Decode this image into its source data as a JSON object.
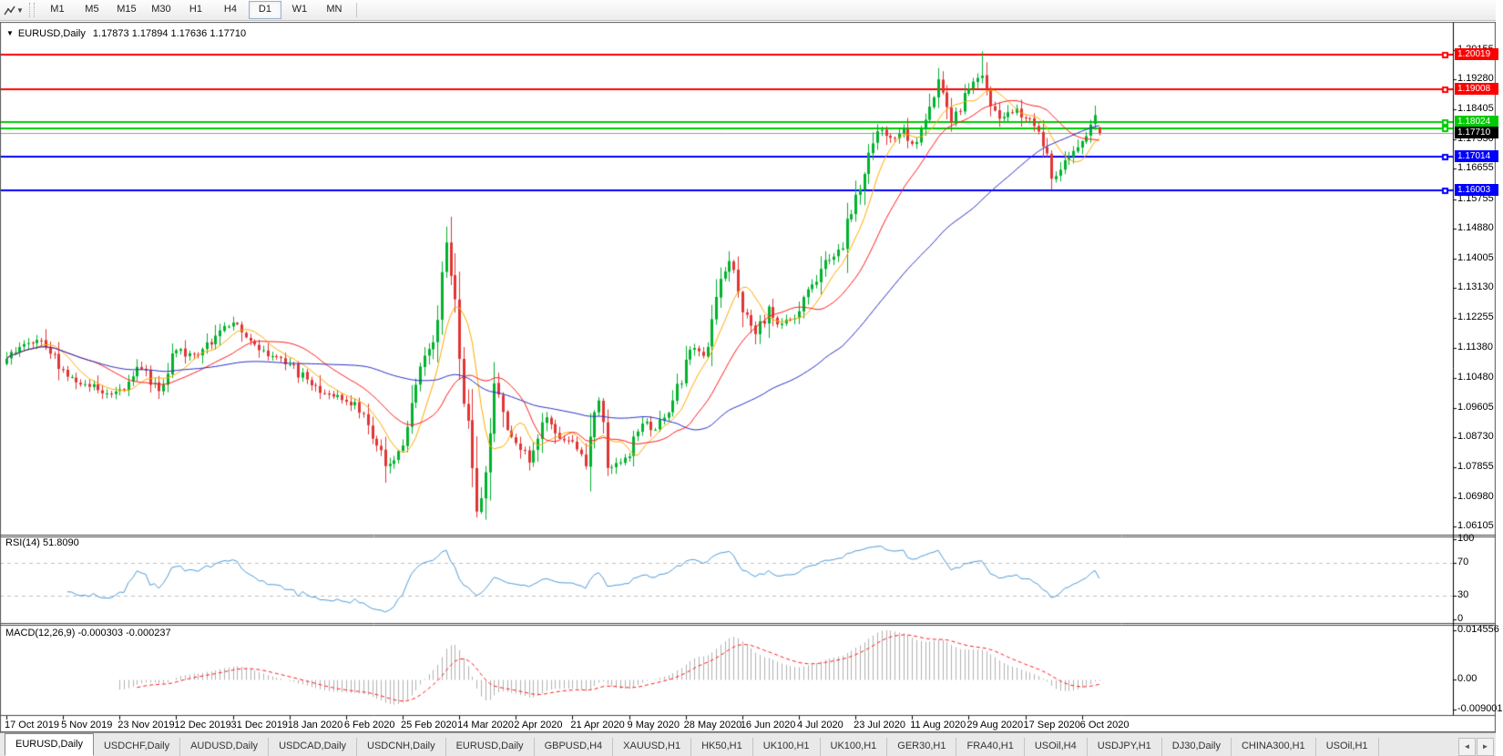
{
  "toolbar": {
    "timeframes": [
      "M1",
      "M5",
      "M15",
      "M30",
      "H1",
      "H4",
      "D1",
      "W1",
      "MN"
    ],
    "active_timeframe": "D1"
  },
  "chart": {
    "collapse_icon": "▼",
    "symbol_label": "EURUSD,Daily",
    "ohlc": "1.17873 1.17894 1.17636 1.17710"
  },
  "chart_data": {
    "type": "candlestick",
    "symbol": "EURUSD",
    "timeframe": "Daily",
    "title": "EURUSD,Daily",
    "last_ohlc": {
      "open": 1.17873,
      "high": 1.17894,
      "low": 1.17636,
      "close": 1.1771
    },
    "num_candles": 252,
    "candles_per_xlabel": 13,
    "x_labels": [
      "17 Oct 2019",
      "5 Nov 2019",
      "23 Nov 2019",
      "12 Dec 2019",
      "31 Dec 2019",
      "18 Jan 2020",
      "6 Feb 2020",
      "25 Feb 2020",
      "14 Mar 2020",
      "2 Apr 2020",
      "21 Apr 2020",
      "9 May 2020",
      "28 May 2020",
      "16 Jun 2020",
      "4 Jul 2020",
      "23 Jul 2020",
      "11 Aug 2020",
      "29 Aug 2020",
      "17 Sep 2020",
      "6 Oct 2020"
    ],
    "y_range": {
      "top": 1.2093,
      "bottom": 1.0592
    },
    "price_axis_labels": [
      "1.20155",
      "1.19280",
      "1.18405",
      "1.17530",
      "1.16655",
      "1.15755",
      "1.14880",
      "1.14005",
      "1.13130",
      "1.12255",
      "1.11380",
      "1.10480",
      "1.09605",
      "1.08730",
      "1.07855",
      "1.06980",
      "1.06105"
    ],
    "close_keyframes": [
      [
        0,
        1.1105
      ],
      [
        4,
        1.115
      ],
      [
        8,
        1.116
      ],
      [
        13,
        1.107
      ],
      [
        18,
        1.103
      ],
      [
        22,
        1.1005
      ],
      [
        26,
        1.1015
      ],
      [
        30,
        1.108
      ],
      [
        35,
        1.101
      ],
      [
        39,
        1.113
      ],
      [
        44,
        1.1115
      ],
      [
        48,
        1.1175
      ],
      [
        52,
        1.1212
      ],
      [
        56,
        1.116
      ],
      [
        60,
        1.1115
      ],
      [
        65,
        1.109
      ],
      [
        70,
        1.1025
      ],
      [
        74,
        1.1
      ],
      [
        78,
        1.098
      ],
      [
        82,
        1.0945
      ],
      [
        85,
        1.085
      ],
      [
        87,
        1.079
      ],
      [
        89,
        1.0805
      ],
      [
        91,
        1.085
      ],
      [
        93,
        1.0975
      ],
      [
        95,
        1.108
      ],
      [
        97,
        1.1135
      ],
      [
        99,
        1.122
      ],
      [
        101,
        1.145
      ],
      [
        102,
        1.135
      ],
      [
        103,
        1.128
      ],
      [
        104,
        1.1105
      ],
      [
        106,
        1.092
      ],
      [
        108,
        1.0655
      ],
      [
        110,
        1.077
      ],
      [
        112,
        1.103
      ],
      [
        114,
        1.095
      ],
      [
        117,
        1.0857
      ],
      [
        120,
        1.08
      ],
      [
        122,
        1.087
      ],
      [
        124,
        1.0935
      ],
      [
        127,
        1.087
      ],
      [
        130,
        1.086
      ],
      [
        133,
        1.079
      ],
      [
        135,
        1.095
      ],
      [
        136,
        1.098
      ],
      [
        138,
        1.0785
      ],
      [
        141,
        1.08
      ],
      [
        143,
        1.0815
      ],
      [
        145,
        1.089
      ],
      [
        147,
        1.092
      ],
      [
        149,
        1.0895
      ],
      [
        151,
        1.093
      ],
      [
        153,
        1.098
      ],
      [
        156,
        1.11
      ],
      [
        158,
        1.1135
      ],
      [
        160,
        1.1115
      ],
      [
        163,
        1.129
      ],
      [
        166,
        1.1395
      ],
      [
        168,
        1.13
      ],
      [
        169,
        1.124
      ],
      [
        172,
        1.118
      ],
      [
        175,
        1.126
      ],
      [
        177,
        1.1205
      ],
      [
        180,
        1.122
      ],
      [
        182,
        1.1245
      ],
      [
        184,
        1.131
      ],
      [
        186,
        1.133
      ],
      [
        188,
        1.1395
      ],
      [
        190,
        1.1405
      ],
      [
        192,
        1.143
      ],
      [
        195,
        1.159
      ],
      [
        197,
        1.165
      ],
      [
        199,
        1.174
      ],
      [
        201,
        1.1778
      ],
      [
        203,
        1.1755
      ],
      [
        206,
        1.1785
      ],
      [
        208,
        1.174
      ],
      [
        210,
        1.1785
      ],
      [
        212,
        1.185
      ],
      [
        214,
        1.193
      ],
      [
        216,
        1.1845
      ],
      [
        217,
        1.18
      ],
      [
        219,
        1.1835
      ],
      [
        221,
        1.19
      ],
      [
        223,
        1.1935
      ],
      [
        224,
        1.194
      ],
      [
        226,
        1.185
      ],
      [
        228,
        1.1815
      ],
      [
        230,
        1.183
      ],
      [
        232,
        1.1845
      ],
      [
        234,
        1.1815
      ],
      [
        236,
        1.179
      ],
      [
        238,
        1.173
      ],
      [
        240,
        1.1635
      ],
      [
        242,
        1.166
      ],
      [
        244,
        1.17
      ],
      [
        246,
        1.173
      ],
      [
        248,
        1.176
      ],
      [
        250,
        1.1825
      ],
      [
        251,
        1.1771
      ]
    ],
    "overrides": {
      "101": {
        "high": 1.1495
      },
      "108": {
        "low": 1.0637
      },
      "224": {
        "high": 1.2011
      },
      "251": {
        "open": 1.17873,
        "high": 1.17894,
        "low": 1.17636,
        "close": 1.1771
      }
    },
    "hlines": [
      {
        "price": 1.20019,
        "color": "#fe0000",
        "label": "1.20019"
      },
      {
        "price": 1.19008,
        "color": "#fe0000",
        "label": "1.19008"
      },
      {
        "price": 1.18024,
        "color": "#00ca00",
        "label": "1.18024"
      },
      {
        "price": 1.1785,
        "color": "#00ca00",
        "label": null
      },
      {
        "price": 1.17014,
        "color": "#0000fe",
        "label": "1.17014"
      },
      {
        "price": 1.16003,
        "color": "#0000fe",
        "label": "1.16003"
      }
    ],
    "current_price": {
      "value": 1.1771,
      "text": "1.17710",
      "line_color": "#9a9a9a",
      "tag_bg": "#000000"
    },
    "moving_averages": [
      {
        "type": "SMA",
        "period": 8,
        "color": "#ffaa00"
      },
      {
        "type": "SMA",
        "period": 20,
        "color": "#ff1d1d"
      },
      {
        "type": "SMA",
        "period": 55,
        "color": "#2a31c4"
      }
    ],
    "rsi": {
      "label": "RSI(14) 51.8090",
      "period": 14,
      "value": 51.809,
      "levels": [
        70,
        30
      ],
      "scale_labels": [
        {
          "text": "100",
          "value": 100
        },
        {
          "text": "70",
          "value": 70
        },
        {
          "text": "30",
          "value": 30
        },
        {
          "text": "0",
          "value": 0
        }
      ],
      "color": "#4f9bd8"
    },
    "macd": {
      "label": "MACD(12,26,9) -0.000303 -0.000237",
      "fast": 12,
      "slow": 26,
      "signal": 9,
      "values": [
        -0.000303,
        -0.000237
      ],
      "scale_labels": [
        {
          "text": "0.014556",
          "value": 0.014556
        },
        {
          "text": "0.00",
          "value": 0
        },
        {
          "text": "-0.009001",
          "value": -0.009001
        }
      ],
      "bar_color": "#b2b2b2",
      "signal_color": "#ff1d1d"
    },
    "colors": {
      "up": "#00b22d",
      "down": "#e23434",
      "background": "#ffffff",
      "axis_text": "#000000"
    }
  },
  "tabs": {
    "items": [
      "EURUSD,Daily",
      "USDCHF,Daily",
      "AUDUSD,Daily",
      "USDCAD,Daily",
      "USDCNH,Daily",
      "EURUSD,Daily",
      "GBPUSD,H4",
      "XAUUSD,H1",
      "HK50,H1",
      "UK100,H1",
      "UK100,H1",
      "GER30,H1",
      "FRA40,H1",
      "USOil,H4",
      "USDJPY,H1",
      "DJ30,Daily",
      "CHINA300,H1",
      "USOil,H1"
    ],
    "active_index": 0,
    "scroll_left": "◄",
    "scroll_right": "►"
  }
}
